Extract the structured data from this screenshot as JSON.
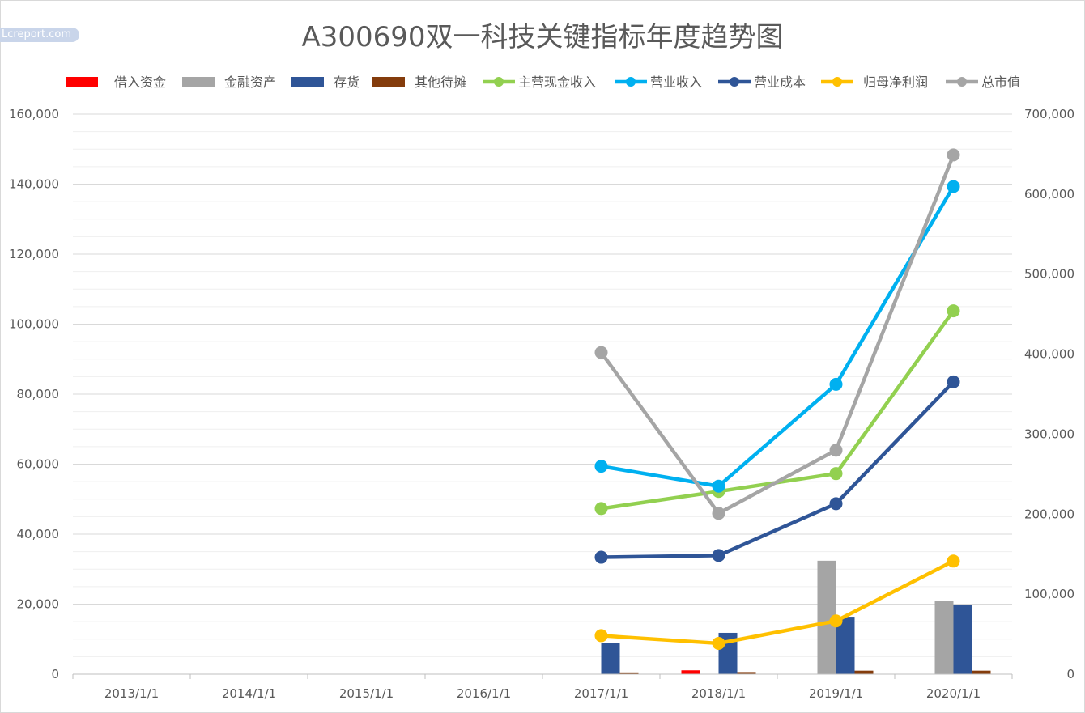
{
  "watermark": "Lcreport.com",
  "chart_data": {
    "type": "bar+line",
    "title": "A300690双一科技关键指标年度趋势图",
    "categories": [
      "2013/1/1",
      "2014/1/1",
      "2015/1/1",
      "2016/1/1",
      "2017/1/1",
      "2018/1/1",
      "2019/1/1",
      "2020/1/1"
    ],
    "y_left": {
      "min": 0,
      "max": 160000,
      "step": 20000,
      "ticks": [
        "0",
        "20,000",
        "40,000",
        "60,000",
        "80,000",
        "100,000",
        "120,000",
        "140,000",
        "160,000"
      ]
    },
    "y_right": {
      "min": 0,
      "max": 700000,
      "step": 100000,
      "ticks": [
        "0",
        "100,000",
        "200,000",
        "300,000",
        "400,000",
        "500,000",
        "600,000",
        "700,000"
      ]
    },
    "grid": true,
    "legend_position": "top",
    "bar_series": [
      {
        "name": "借入资金",
        "color": "#ff0000",
        "values": [
          null,
          null,
          null,
          null,
          0,
          1100,
          0,
          0
        ]
      },
      {
        "name": "金融资产",
        "color": "#a5a5a5",
        "values": [
          null,
          null,
          null,
          null,
          0,
          0,
          32400,
          21000
        ]
      },
      {
        "name": "存货",
        "color": "#2f5597",
        "values": [
          null,
          null,
          null,
          null,
          8900,
          11800,
          16400,
          19700
        ]
      },
      {
        "name": "其他待摊",
        "color": "#843c0c",
        "values": [
          null,
          null,
          null,
          null,
          500,
          600,
          1000,
          1000
        ]
      }
    ],
    "line_series": [
      {
        "name": "主营现金收入",
        "color": "#92d050",
        "axis": "left",
        "values": [
          null,
          null,
          null,
          null,
          47300,
          52200,
          57300,
          103800
        ]
      },
      {
        "name": "营业收入",
        "color": "#00b0f0",
        "axis": "left",
        "values": [
          null,
          null,
          null,
          null,
          59400,
          53700,
          82800,
          139300
        ]
      },
      {
        "name": "营业成本",
        "color": "#2f5597",
        "axis": "left",
        "values": [
          null,
          null,
          null,
          null,
          33400,
          33900,
          48700,
          83500
        ]
      },
      {
        "name": "归母净利润",
        "color": "#ffc000",
        "axis": "left",
        "values": [
          null,
          null,
          null,
          null,
          11000,
          8800,
          15200,
          32300
        ]
      },
      {
        "name": "总市值",
        "color": "#a5a5a5",
        "axis": "right",
        "values": [
          null,
          null,
          null,
          null,
          402000,
          201000,
          280000,
          649000
        ]
      }
    ]
  }
}
